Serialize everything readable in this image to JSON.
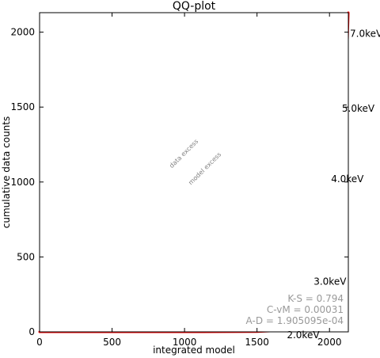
{
  "chart_data": {
    "type": "line",
    "title": "QQ-plot",
    "xlabel": "integrated model",
    "ylabel": "cumulative data counts",
    "xlim": [
      0,
      2130
    ],
    "ylim": [
      0,
      2130
    ],
    "xticks": [
      0,
      500,
      1000,
      1500,
      2000
    ],
    "yticks": [
      0,
      500,
      1000,
      1500,
      2000
    ],
    "grid": false,
    "series": [
      {
        "name": "",
        "style": "solid",
        "color": "#ff0000",
        "points": [
          {
            "x": 0,
            "y": 0
          },
          {
            "x": 1000,
            "y": 0
          },
          {
            "x": 1500,
            "y": 1
          },
          {
            "x": 1650,
            "y": 8
          },
          {
            "x": 1700,
            "y": 22
          },
          {
            "x": 1750,
            "y": 60
          },
          {
            "x": 1780,
            "y": 105
          },
          {
            "x": 1810,
            "y": 170
          },
          {
            "x": 1850,
            "y": 290
          },
          {
            "x": 1890,
            "y": 440
          },
          {
            "x": 1930,
            "y": 620
          },
          {
            "x": 1970,
            "y": 820
          },
          {
            "x": 2010,
            "y": 1040
          },
          {
            "x": 2040,
            "y": 1230
          },
          {
            "x": 2070,
            "y": 1440
          },
          {
            "x": 2090,
            "y": 1590
          },
          {
            "x": 2110,
            "y": 1760
          },
          {
            "x": 2125,
            "y": 1960
          },
          {
            "x": 2130,
            "y": 2130
          }
        ]
      },
      {
        "name": "",
        "style": "dashed",
        "color": "#808080",
        "points": [
          {
            "x": 0,
            "y": 0
          },
          {
            "x": 2130,
            "y": 2130
          }
        ]
      }
    ],
    "annotations": {
      "diagonal_labels": [
        {
          "text": "data excess",
          "x": 1005,
          "y": 1180
        },
        {
          "text": "model excess",
          "x": 1150,
          "y": 1080
        }
      ],
      "energy_labels": [
        {
          "text": "2.0keV",
          "x": 1695,
          "y": -20
        },
        {
          "text": "3.0keV",
          "x": 1880,
          "y": 335
        },
        {
          "text": "4.0keV",
          "x": 2000,
          "y": 1020
        },
        {
          "text": "5.0keV",
          "x": 2075,
          "y": 1490
        },
        {
          "text": "7.0keV",
          "x": 2130,
          "y": 1990
        }
      ],
      "stats": [
        "K-S = 0.794",
        "C-vM = 0.00031",
        "A-D = 1.905095e-04"
      ]
    }
  }
}
